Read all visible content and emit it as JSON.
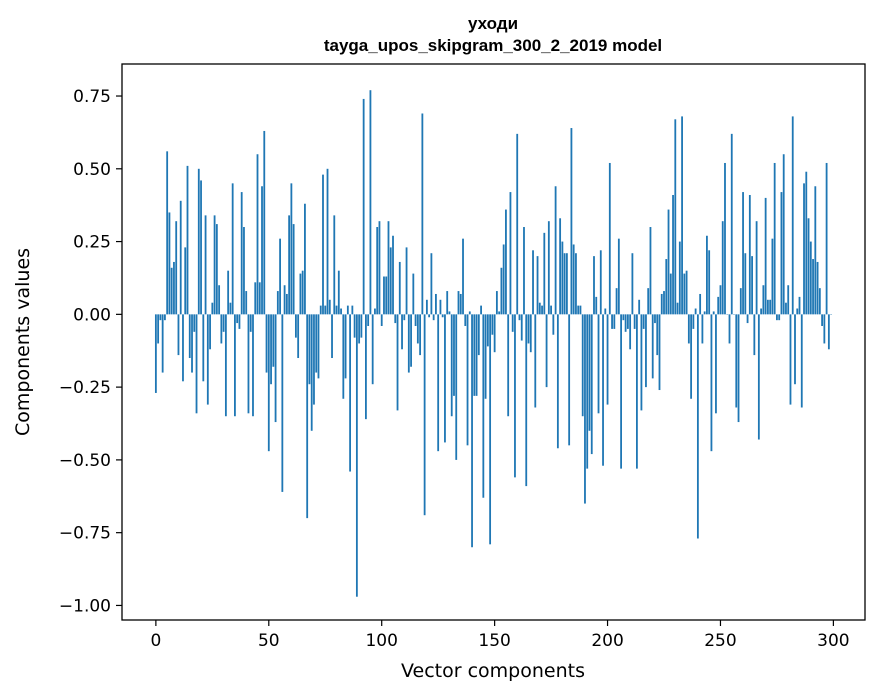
{
  "chart_data": {
    "type": "bar",
    "title": "уходи",
    "subtitle": "tayga_upos_skipgram_300_2_2019 model",
    "xlabel": "Vector components",
    "ylabel": "Components values",
    "xlim": [
      -15,
      314
    ],
    "ylim": [
      -1.05,
      0.86
    ],
    "xticks": [
      0,
      50,
      100,
      150,
      200,
      250,
      300
    ],
    "xtick_labels": [
      "0",
      "50",
      "100",
      "150",
      "200",
      "250",
      "300"
    ],
    "yticks": [
      0.75,
      0.5,
      0.25,
      0.0,
      -0.25,
      -0.5,
      -0.75,
      -1.0
    ],
    "ytick_labels": [
      "0.75",
      "0.50",
      "0.25",
      "0.00",
      "−0.25",
      "−0.50",
      "−0.75",
      "−1.00"
    ],
    "bar_color": "#1f77b4",
    "grid": false,
    "x": "indices 0..299",
    "values": [
      -0.27,
      -0.1,
      -0.02,
      -0.2,
      -0.02,
      0.56,
      0.35,
      0.16,
      0.18,
      0.32,
      -0.14,
      0.39,
      -0.23,
      0.23,
      0.51,
      -0.15,
      -0.2,
      -0.06,
      -0.34,
      0.5,
      0.46,
      -0.23,
      0.34,
      -0.31,
      -0.12,
      0.04,
      0.34,
      0.31,
      0.1,
      -0.1,
      -0.06,
      -0.35,
      0.15,
      0.04,
      0.45,
      -0.35,
      -0.03,
      -0.05,
      0.42,
      0.3,
      0.08,
      -0.34,
      -0.06,
      -0.35,
      0.11,
      0.55,
      0.11,
      0.44,
      0.63,
      -0.2,
      -0.47,
      -0.24,
      -0.18,
      -0.37,
      0.08,
      0.26,
      -0.61,
      0.1,
      0.07,
      0.34,
      0.45,
      0.31,
      -0.08,
      -0.15,
      0.14,
      0.15,
      0.38,
      -0.7,
      -0.24,
      -0.4,
      -0.31,
      -0.2,
      -0.22,
      0.03,
      0.48,
      0.03,
      0.5,
      0.05,
      -0.15,
      0.34,
      0.03,
      0.15,
      0.02,
      -0.29,
      -0.22,
      0.03,
      -0.54,
      0.03,
      -0.08,
      -0.97,
      -0.1,
      -0.08,
      0.74,
      -0.36,
      -0.04,
      0.77,
      -0.24,
      0.02,
      0.3,
      0.32,
      -0.04,
      0.13,
      0.13,
      0.32,
      0.23,
      0.27,
      -0.03,
      -0.33,
      0.18,
      -0.12,
      -0.02,
      0.23,
      -0.2,
      -0.18,
      0.14,
      -0.04,
      -0.1,
      -0.14,
      0.69,
      -0.69,
      0.05,
      -0.01,
      0.21,
      -0.02,
      0.07,
      -0.47,
      0.05,
      -0.01,
      -0.44,
      0.08,
      0.01,
      -0.35,
      -0.28,
      -0.5,
      0.08,
      0.07,
      0.26,
      -0.04,
      -0.45,
      0.01,
      -0.8,
      -0.28,
      -0.28,
      -0.14,
      0.03,
      -0.63,
      -0.29,
      -0.11,
      -0.79,
      -0.07,
      -0.13,
      0.08,
      0.01,
      0.16,
      0.24,
      0.36,
      -0.35,
      0.42,
      -0.06,
      -0.56,
      0.62,
      -0.02,
      -0.09,
      0.3,
      -0.59,
      -0.1,
      -0.13,
      0.22,
      -0.32,
      0.2,
      0.04,
      0.03,
      0.28,
      -0.25,
      0.32,
      0.03,
      -0.07,
      0.44,
      -0.46,
      0.33,
      0.25,
      0.21,
      0.21,
      -0.45,
      0.64,
      0.24,
      0.21,
      0.03,
      0.03,
      -0.35,
      -0.65,
      -0.53,
      -0.4,
      -0.48,
      0.2,
      0.06,
      -0.34,
      0.22,
      -0.52,
      0.02,
      -0.31,
      0.52,
      -0.05,
      -0.05,
      0.09,
      0.26,
      -0.53,
      -0.02,
      -0.06,
      -0.05,
      -0.12,
      0.21,
      -0.05,
      -0.53,
      0.05,
      -0.33,
      -0.05,
      -0.25,
      0.09,
      0.3,
      -0.22,
      -0.03,
      -0.14,
      -0.26,
      0.07,
      0.08,
      0.19,
      0.36,
      0.14,
      0.41,
      0.67,
      0.04,
      0.25,
      0.68,
      0.14,
      0.15,
      -0.1,
      -0.29,
      -0.05,
      0.02,
      -0.77,
      0.07,
      -0.1,
      0.01,
      0.27,
      0.22,
      -0.47,
      0.01,
      -0.34,
      0.06,
      0.1,
      0.32,
      0.52,
      0.0,
      -0.1,
      0.62,
      0.0,
      -0.32,
      -0.37,
      0.09,
      0.42,
      0.21,
      -0.03,
      0.41,
      0.2,
      -0.14,
      0.32,
      -0.43,
      0.02,
      0.1,
      0.4,
      0.05,
      0.05,
      0.26,
      0.52,
      -0.02,
      -0.02,
      0.42,
      0.55,
      0.04,
      0.1,
      -0.31,
      0.68,
      -0.24,
      0.02,
      0.06,
      -0.32,
      0.45,
      0.49,
      0.33,
      0.25,
      0.19,
      0.44,
      0.18,
      0.09,
      -0.04,
      -0.1,
      0.52,
      -0.12,
      0.0
    ]
  }
}
